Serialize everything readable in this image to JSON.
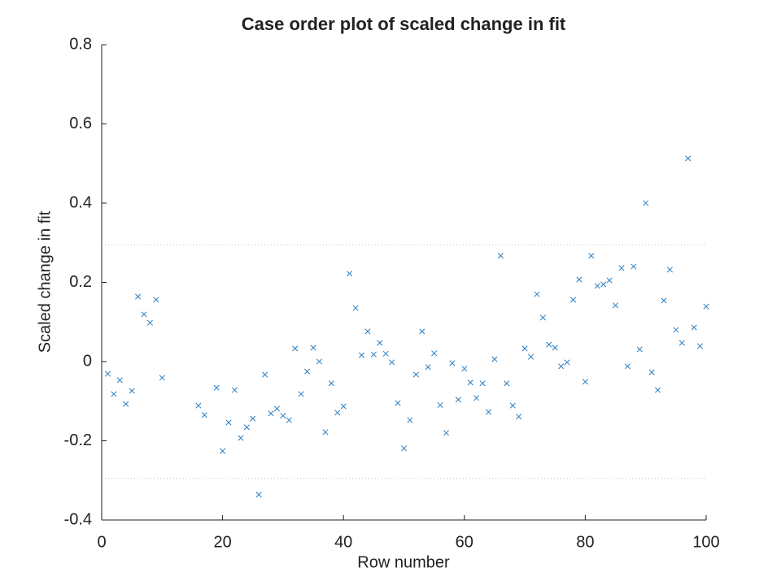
{
  "chart_data": {
    "type": "scatter",
    "title": "Case order plot of scaled change in fit",
    "xlabel": "Row number",
    "ylabel": "Scaled change in fit",
    "color": "#2a7fc4",
    "marker": "x",
    "x": [
      1,
      2,
      3,
      4,
      5,
      6,
      7,
      8,
      9,
      10,
      16,
      17,
      19,
      20,
      21,
      22,
      23,
      24,
      25,
      26,
      27,
      28,
      29,
      30,
      31,
      32,
      33,
      34,
      35,
      36,
      37,
      38,
      39,
      40,
      41,
      42,
      43,
      44,
      45,
      46,
      47,
      48,
      49,
      50,
      51,
      52,
      53,
      54,
      55,
      56,
      57,
      58,
      59,
      60,
      61,
      62,
      63,
      64,
      65,
      66,
      67,
      68,
      69,
      70,
      71,
      72,
      73,
      74,
      75,
      76,
      77,
      78,
      79,
      80,
      81,
      82,
      83,
      84,
      85,
      86,
      87,
      88,
      89,
      90,
      91,
      92,
      93,
      94,
      95,
      96,
      97,
      98,
      99,
      100
    ],
    "y": [
      -0.031,
      -0.082,
      -0.047,
      -0.107,
      -0.074,
      0.164,
      0.119,
      0.098,
      0.156,
      -0.041,
      -0.111,
      -0.135,
      -0.066,
      -0.226,
      -0.154,
      -0.072,
      -0.193,
      -0.166,
      -0.144,
      -0.336,
      -0.033,
      -0.131,
      -0.119,
      -0.137,
      -0.148,
      0.033,
      -0.082,
      -0.025,
      0.035,
      0.0,
      -0.178,
      -0.055,
      -0.129,
      -0.113,
      0.222,
      0.135,
      0.016,
      0.076,
      0.018,
      0.047,
      0.02,
      -0.002,
      -0.105,
      -0.219,
      -0.148,
      -0.033,
      0.076,
      -0.014,
      0.021,
      -0.11,
      -0.18,
      -0.004,
      -0.096,
      -0.018,
      -0.053,
      -0.092,
      -0.055,
      -0.127,
      0.006,
      0.267,
      -0.055,
      -0.111,
      -0.139,
      0.033,
      0.012,
      0.17,
      0.111,
      0.043,
      0.035,
      -0.012,
      -0.002,
      0.156,
      0.207,
      -0.051,
      0.267,
      0.191,
      0.195,
      0.205,
      0.142,
      0.236,
      -0.012,
      0.24,
      0.031,
      0.4,
      -0.027,
      -0.072,
      0.154,
      0.232,
      0.08,
      0.047,
      0.513,
      0.086,
      0.039,
      0.139
    ],
    "hlines": [
      0.295,
      -0.295
    ],
    "xlim": [
      0,
      100
    ],
    "xticks": [
      0,
      20,
      40,
      60,
      80,
      100
    ],
    "ylim": [
      -0.4,
      0.8
    ],
    "yticks": [
      -0.4,
      -0.2,
      0,
      0.2,
      0.4,
      0.6,
      0.8
    ]
  }
}
